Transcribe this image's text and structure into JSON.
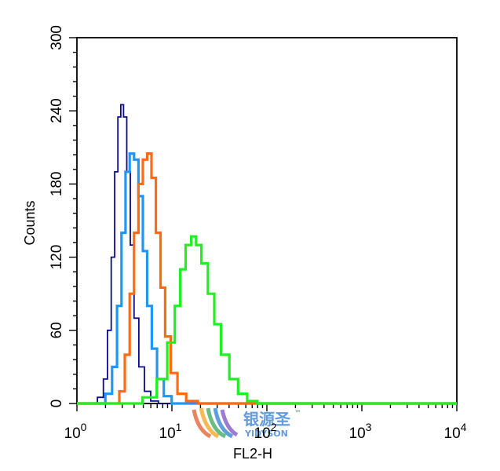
{
  "chart_data": {
    "type": "line",
    "title": "",
    "xlabel": "FL2-H",
    "ylabel": "Counts",
    "x_scale": "log",
    "xlim": [
      1,
      10000
    ],
    "ylim": [
      0,
      300
    ],
    "grid": false,
    "legend": "none",
    "x_tick_labels": [
      {
        "base": "10",
        "exp": "0"
      },
      {
        "base": "10",
        "exp": "1"
      },
      {
        "base": "10",
        "exp": "2"
      },
      {
        "base": "10",
        "exp": "3"
      },
      {
        "base": "10",
        "exp": "4"
      }
    ],
    "y_ticks": [
      0,
      60,
      120,
      180,
      240,
      300
    ],
    "series": [
      {
        "color": "#0a0a8c",
        "points": [
          [
            1.5,
            0
          ],
          [
            1.8,
            5
          ],
          [
            2.0,
            20
          ],
          [
            2.2,
            60
          ],
          [
            2.4,
            120
          ],
          [
            2.6,
            190
          ],
          [
            2.8,
            235
          ],
          [
            3.0,
            245
          ],
          [
            3.2,
            235
          ],
          [
            3.5,
            190
          ],
          [
            3.8,
            130
          ],
          [
            4.2,
            70
          ],
          [
            4.8,
            30
          ],
          [
            5.5,
            10
          ],
          [
            6.5,
            2
          ],
          [
            8,
            0
          ]
        ]
      },
      {
        "color": "#2196f3",
        "points": [
          [
            1.8,
            0
          ],
          [
            2.2,
            8
          ],
          [
            2.5,
            30
          ],
          [
            2.8,
            80
          ],
          [
            3.1,
            140
          ],
          [
            3.4,
            190
          ],
          [
            3.8,
            205
          ],
          [
            4.2,
            200
          ],
          [
            4.7,
            170
          ],
          [
            5.2,
            125
          ],
          [
            5.8,
            80
          ],
          [
            6.5,
            45
          ],
          [
            7.5,
            20
          ],
          [
            9,
            6
          ],
          [
            11,
            0
          ]
        ]
      },
      {
        "color": "#ff6a13",
        "points": [
          [
            2.6,
            0
          ],
          [
            3.0,
            10
          ],
          [
            3.4,
            40
          ],
          [
            3.8,
            90
          ],
          [
            4.2,
            140
          ],
          [
            4.7,
            180
          ],
          [
            5.2,
            200
          ],
          [
            5.8,
            205
          ],
          [
            6.4,
            185
          ],
          [
            7.2,
            140
          ],
          [
            8,
            95
          ],
          [
            9,
            55
          ],
          [
            10.5,
            25
          ],
          [
            12.5,
            8
          ],
          [
            16,
            2
          ],
          [
            22,
            0
          ]
        ]
      },
      {
        "color": "#22ee22",
        "points": [
          [
            4,
            0
          ],
          [
            6,
            5
          ],
          [
            8,
            20
          ],
          [
            10,
            50
          ],
          [
            11.5,
            80
          ],
          [
            13,
            110
          ],
          [
            15,
            130
          ],
          [
            17,
            137
          ],
          [
            19,
            130
          ],
          [
            22,
            115
          ],
          [
            26,
            90
          ],
          [
            30,
            65
          ],
          [
            36,
            40
          ],
          [
            45,
            20
          ],
          [
            55,
            8
          ],
          [
            70,
            2
          ],
          [
            90,
            0
          ]
        ]
      }
    ]
  },
  "watermark": {
    "text_cn": "银源圣",
    "text_en": "YIDYSON",
    "tm": "™"
  }
}
